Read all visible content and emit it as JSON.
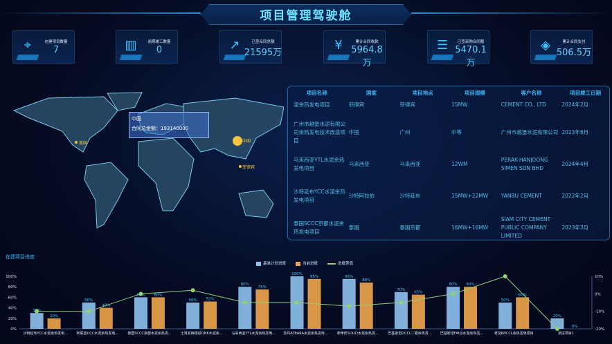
{
  "header": {
    "title": "项目管理驾驶舱"
  },
  "kpis": [
    {
      "label": "在建项目数量",
      "value": "7",
      "icon": "location-pin-icon"
    },
    {
      "label": "逾期竣工数量",
      "value": "0",
      "icon": "building-icon"
    },
    {
      "label": "已签合同总额",
      "value": "21595万",
      "icon": "trend-chart-icon"
    },
    {
      "label": "累计合同收款",
      "value": "5964.8万",
      "icon": "yuan-coin-icon"
    },
    {
      "label": "已签采购合同额",
      "value": "5470.1万",
      "icon": "coin-stack-icon"
    },
    {
      "label": "累计合同支付",
      "value": "506.5万",
      "icon": "layers-icon"
    }
  ],
  "map": {
    "markers": [
      "美国",
      "中国",
      "菲律宾"
    ],
    "tooltip": {
      "country": "中国",
      "line": "合同总金额：193140000"
    },
    "highlight_color": "#f5c445"
  },
  "table": {
    "headers": [
      "项目名称",
      "国家",
      "项目地点",
      "项目规模",
      "客户名称",
      "项目竣工日期"
    ],
    "rows": [
      [
        "泥余热发电项目",
        "菲律宾",
        "菲律宾",
        "15MW",
        "CEMENT CO., LTD",
        "2024年2月"
      ],
      [
        "广州市越堡水泥有限公司余热发电技术改造项目",
        "中国",
        "广州",
        "中等",
        "广州市越堡水泥有限公司",
        "2023年6月"
      ],
      [
        "马来西亚YTL水泥余热发电项目",
        "马来西亚",
        "马来西亚",
        "12WM",
        "PERAK-HANJOONG SIMEN SDN BHD",
        "2024年4月"
      ],
      [
        "沙特延布YCC水泥余热发电项目",
        "沙特阿拉伯",
        "沙特延布",
        "15MW+22MW",
        "YANBU CEMENT",
        "2022年2月"
      ],
      [
        "泰国SCCC京都水泥余热发电项目",
        "泰国",
        "泰国京都",
        "16MW+16MW",
        "SIAM CITY CEMENT PUBLIC COMPANY LIMITED",
        "2023年3月"
      ]
    ]
  },
  "progress": {
    "title": "在建项目进度"
  },
  "chart_data": {
    "type": "bar",
    "categories": [
      "沙特延布YCC水泥余热发电...",
      "阿联酋UCC水泥余热发电...",
      "泰国SCCC京都水泥余热发...",
      "土耳其梅德兹ONK水泥余...",
      "马来西亚YTL水泥余热发电...",
      "苏丹ATBARA水泥余热发电...",
      "菲律宾SOLID水泥余热发...",
      "巴基斯坦DCCL二期余热发...",
      "巴基斯坦FAUJI水泥余热发...",
      "老挝KNCCL余热发电项目",
      "测试项目1"
    ],
    "series": [
      {
        "name": "基准计划进度",
        "type": "bar",
        "color": "#8fc3ee",
        "values": [
          30,
          50,
          60,
          50,
          80,
          100,
          95,
          70,
          80,
          50,
          20
        ]
      },
      {
        "name": "当前进度",
        "type": "bar",
        "color": "#f0a54a",
        "values": [
          20,
          40,
          60,
          52,
          75,
          95,
          88,
          65,
          80,
          60,
          0
        ]
      },
      {
        "name": "进度差值",
        "type": "line",
        "axis": "right",
        "color": "#8fd07a",
        "values": [
          -10,
          -10,
          0,
          2,
          -5,
          -5,
          -7,
          -5,
          0,
          10,
          -20
        ]
      }
    ],
    "y_left": {
      "range": [
        0,
        100
      ],
      "ticks": [
        "0%",
        "20%",
        "40%",
        "60%",
        "80%",
        "100%"
      ]
    },
    "y_right": {
      "range": [
        -20,
        10
      ],
      "ticks": [
        "-20%",
        "-10%",
        "0%",
        "10%"
      ]
    },
    "legend": "top-center"
  }
}
